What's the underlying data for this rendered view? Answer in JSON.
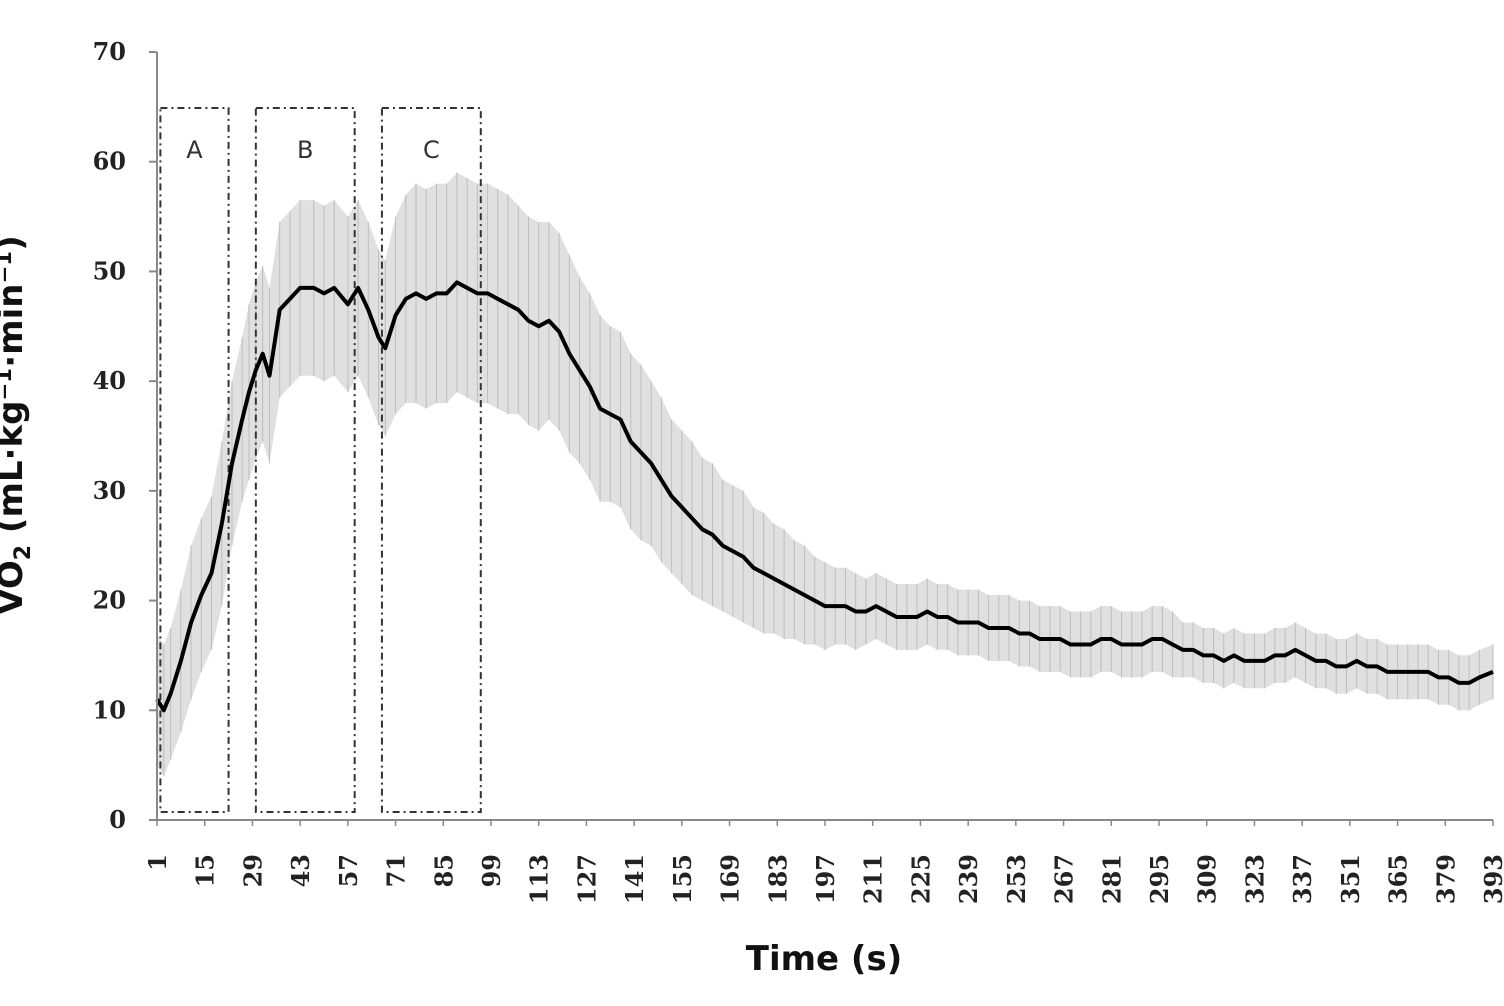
{
  "chart_data": {
    "type": "line",
    "title": "",
    "xlabel": "Time (s)",
    "ylabel_main": "VO",
    "ylabel_sub": "2",
    "ylabel_rest": " (mL·kg⁻¹·min⁻¹)",
    "xlim": [
      1,
      393
    ],
    "ylim": [
      0,
      70
    ],
    "yticks": [
      0,
      10,
      20,
      30,
      40,
      50,
      60,
      70
    ],
    "xticks": [
      1,
      15,
      29,
      43,
      57,
      71,
      85,
      99,
      113,
      127,
      141,
      155,
      169,
      183,
      197,
      211,
      225,
      239,
      253,
      267,
      281,
      295,
      309,
      323,
      337,
      351,
      365,
      379,
      393
    ],
    "grid": false,
    "regions": [
      {
        "label": "A",
        "x_start": 2,
        "x_end": 22
      },
      {
        "label": "B",
        "x_start": 30,
        "x_end": 59
      },
      {
        "label": "C",
        "x_start": 67,
        "x_end": 96
      }
    ],
    "series": [
      {
        "x": [
          1,
          3,
          5,
          8,
          11,
          14,
          17,
          20,
          23,
          26,
          28,
          30,
          32,
          34,
          37,
          40,
          43,
          47,
          50,
          53,
          57,
          60,
          63,
          66,
          68,
          71,
          74,
          77,
          80,
          83,
          86,
          89,
          92,
          95,
          98,
          101,
          104,
          107,
          110,
          113,
          116,
          119,
          122,
          125,
          128,
          131,
          134,
          137,
          140,
          143,
          146,
          149,
          152,
          155,
          158,
          161,
          164,
          167,
          170,
          173,
          176,
          179,
          182,
          185,
          188,
          191,
          194,
          197,
          200,
          203,
          206,
          209,
          212,
          215,
          218,
          221,
          224,
          227,
          230,
          233,
          236,
          239,
          242,
          245,
          248,
          251,
          254,
          257,
          260,
          263,
          266,
          269,
          272,
          275,
          278,
          281,
          284,
          287,
          290,
          293,
          296,
          299,
          302,
          305,
          308,
          311,
          314,
          317,
          320,
          323,
          326,
          329,
          332,
          335,
          338,
          341,
          344,
          347,
          350,
          353,
          356,
          359,
          362,
          365,
          368,
          371,
          374,
          377,
          380,
          383,
          386,
          389,
          393
        ],
        "y": [
          11.0,
          10.0,
          11.5,
          14.5,
          18.0,
          20.5,
          22.5,
          27.0,
          32.5,
          36.5,
          39.0,
          41.0,
          42.5,
          40.5,
          46.5,
          47.5,
          48.5,
          48.5,
          48.0,
          48.5,
          47.0,
          48.5,
          46.5,
          44.0,
          43.0,
          46.0,
          47.5,
          48.0,
          47.5,
          48.0,
          48.0,
          49.0,
          48.5,
          48.0,
          48.0,
          47.5,
          47.0,
          46.5,
          45.5,
          45.0,
          45.5,
          44.5,
          42.5,
          41.0,
          39.5,
          37.5,
          37.0,
          36.5,
          34.5,
          33.5,
          32.5,
          31.0,
          29.5,
          28.5,
          27.5,
          26.5,
          26.0,
          25.0,
          24.5,
          24.0,
          23.0,
          22.5,
          22.0,
          21.5,
          21.0,
          20.5,
          20.0,
          19.5,
          19.5,
          19.5,
          19.0,
          19.0,
          19.5,
          19.0,
          18.5,
          18.5,
          18.5,
          19.0,
          18.5,
          18.5,
          18.0,
          18.0,
          18.0,
          17.5,
          17.5,
          17.5,
          17.0,
          17.0,
          16.5,
          16.5,
          16.5,
          16.0,
          16.0,
          16.0,
          16.5,
          16.5,
          16.0,
          16.0,
          16.0,
          16.5,
          16.5,
          16.0,
          15.5,
          15.5,
          15.0,
          15.0,
          14.5,
          15.0,
          14.5,
          14.5,
          14.5,
          15.0,
          15.0,
          15.5,
          15.0,
          14.5,
          14.5,
          14.0,
          14.0,
          14.5,
          14.0,
          14.0,
          13.5,
          13.5,
          13.5,
          13.5,
          13.5,
          13.0,
          13.0,
          12.5,
          12.5,
          13.0,
          13.5
        ],
        "sd": [
          6.0,
          6.0,
          6.0,
          6.5,
          7.0,
          7.0,
          7.0,
          7.5,
          7.5,
          7.5,
          8.0,
          8.0,
          8.0,
          8.0,
          8.0,
          8.0,
          8.0,
          8.0,
          8.0,
          8.0,
          8.0,
          8.0,
          8.0,
          8.0,
          8.0,
          9.0,
          9.5,
          10.0,
          10.0,
          10.0,
          10.0,
          10.0,
          10.0,
          10.0,
          10.0,
          10.0,
          10.0,
          9.5,
          9.5,
          9.5,
          9.0,
          9.0,
          9.0,
          8.5,
          8.5,
          8.5,
          8.0,
          8.0,
          8.0,
          8.0,
          7.5,
          7.5,
          7.0,
          7.0,
          7.0,
          6.5,
          6.5,
          6.0,
          6.0,
          6.0,
          5.5,
          5.5,
          5.0,
          5.0,
          4.5,
          4.5,
          4.0,
          4.0,
          3.5,
          3.5,
          3.5,
          3.0,
          3.0,
          3.0,
          3.0,
          3.0,
          3.0,
          3.0,
          3.0,
          3.0,
          3.0,
          3.0,
          3.0,
          3.0,
          3.0,
          3.0,
          3.0,
          3.0,
          3.0,
          3.0,
          3.0,
          3.0,
          3.0,
          3.0,
          3.0,
          3.0,
          3.0,
          3.0,
          3.0,
          3.0,
          3.0,
          3.0,
          2.5,
          2.5,
          2.5,
          2.5,
          2.5,
          2.5,
          2.5,
          2.5,
          2.5,
          2.5,
          2.5,
          2.5,
          2.5,
          2.5,
          2.5,
          2.5,
          2.5,
          2.5,
          2.5,
          2.5,
          2.5,
          2.5,
          2.5,
          2.5,
          2.5,
          2.5,
          2.5,
          2.5,
          2.5,
          2.5,
          2.5
        ]
      }
    ],
    "colors": {
      "line": "#000000",
      "band": "#d6d6d6",
      "axis": "#888888",
      "box": "#333333"
    }
  }
}
